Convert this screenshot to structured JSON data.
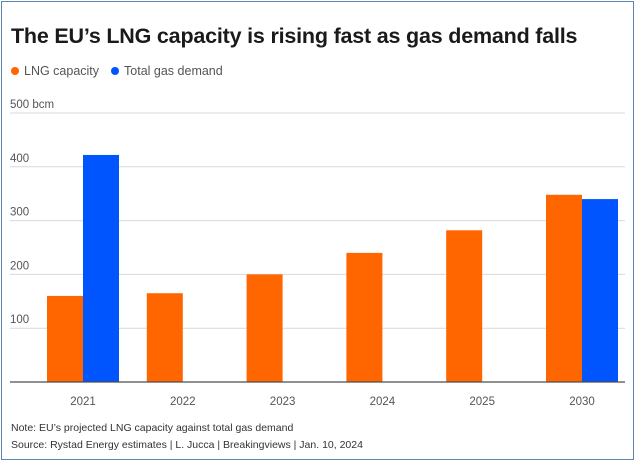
{
  "chart_data": {
    "type": "bar",
    "title": "The EU’s LNG capacity is rising fast as gas demand falls",
    "ylabel_unit": "bcm",
    "categories": [
      "2021",
      "2022",
      "2023",
      "2024",
      "2025",
      "2030"
    ],
    "series": [
      {
        "name": "LNG capacity",
        "color": "#ff6600",
        "values": [
          160,
          165,
          200,
          240,
          282,
          348
        ]
      },
      {
        "name": "Total gas demand",
        "color": "#0055ff",
        "values": [
          422,
          null,
          null,
          null,
          null,
          340
        ]
      }
    ],
    "yticks": [
      {
        "value": 100,
        "label": "100"
      },
      {
        "value": 200,
        "label": "200"
      },
      {
        "value": 300,
        "label": "300"
      },
      {
        "value": 400,
        "label": "400"
      },
      {
        "value": 500,
        "label": "500 bcm"
      }
    ],
    "ylim": [
      0,
      500
    ],
    "grid": true,
    "legend": "top-left",
    "note": "Note: EU’s projected LNG capacity against total gas demand",
    "source": "Source: Rystad Energy estimates | L. Jucca | Breakingviews | Jan. 10, 2024"
  }
}
